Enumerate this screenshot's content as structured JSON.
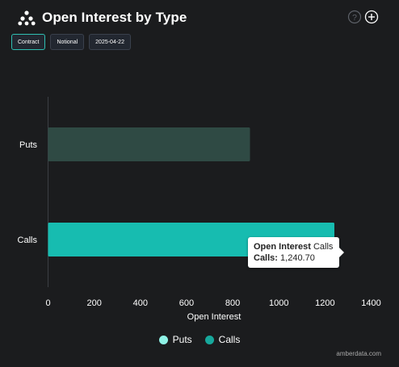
{
  "header": {
    "title": "Open Interest by Type",
    "help_icon": "help-circle-icon",
    "add_icon": "plus-circle-icon"
  },
  "buttons": {
    "contract": "Contract",
    "notional": "Notional",
    "date": "2025-04-22"
  },
  "tooltip": {
    "label_bold": "Open Interest",
    "label_series": "Calls",
    "value_label": "Calls:",
    "value": "1,240.70"
  },
  "watermark": "amberdata.com",
  "colors": {
    "puts": "#2f4a44",
    "calls": "#17bcb0",
    "legend_puts": "#8ff2e6",
    "legend_calls": "#17a89c",
    "background": "#1b1c1e"
  },
  "chart_data": {
    "type": "bar",
    "orientation": "horizontal",
    "categories": [
      "Puts",
      "Calls"
    ],
    "values": [
      875,
      1240.7
    ],
    "xlabel": "Open Interest",
    "xlim": [
      0,
      1400
    ],
    "xticks": [
      0,
      200,
      400,
      600,
      800,
      1000,
      1200,
      1400
    ],
    "legend": [
      "Puts",
      "Calls"
    ],
    "legend_position": "bottom",
    "grid": false
  }
}
